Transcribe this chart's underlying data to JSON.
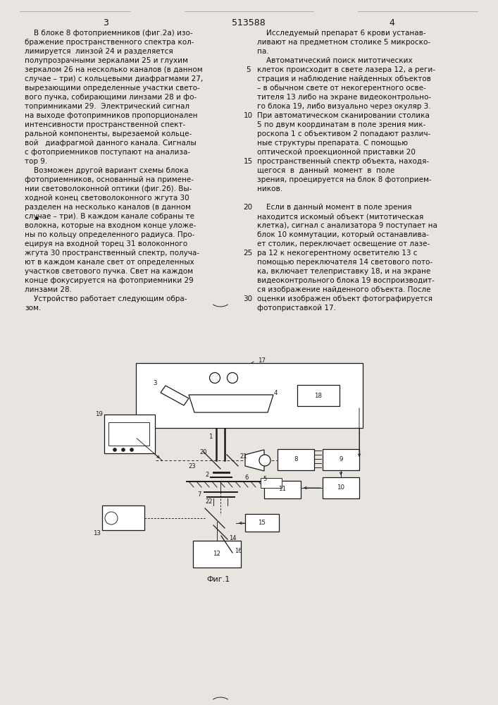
{
  "page_bg": "#e8e5e0",
  "text_color": "#111111",
  "dc": "#1a1a1a",
  "page_num_left": "3",
  "page_num_center": "513588",
  "page_num_right": "4",
  "left_col": [
    "    В блоке 8 фотоприемников (фиг.2а) изо-",
    "бражение пространственного спектра кол-",
    "лимируется  линзой 24 и разделяется",
    "полупрозрачными зеркалами 25 и глухим",
    "зеркалом 26 на несколько каналов (в данном",
    "случае – три) с кольцевыми диафрагмами 27,",
    "вырезающими определенные участки свето-",
    "вого пучка, собирающими линзами 28 и фо-",
    "топримниками 29.  Электрический сигнал",
    "на выходе фотопримников пропорционален",
    "интенсивности пространственной спект-",
    "ральной компоненты, вырезаемой кольце-",
    "вой   диафрагмой данного канала. Сигналы",
    "с фотоприемников поступают на анализа-",
    "тор 9.",
    "    Возможен другой вариант схемы блока",
    "фотоприемников, основанный на примене-",
    "нии световолоконной оптики (фиг.2б). Вы-",
    "ходной конец световолоконного жгута 30",
    "разделен на несколько каналов (в данном",
    "случае – три). В каждом канале собраны те",
    "волокна, которые на входном конце уложе-",
    "ны по кольцу определенного радиуса. Про-",
    "ецируя на входной торец 31 волоконного",
    "жгута 30 пространственный спектр, получа-",
    "ют в каждом канале свет от определенных",
    "участков светового пучка. Свет на каждом",
    "конце фокусируется на фотоприемники 29",
    "линзами 28.",
    "    Устройство работает следующим обра-",
    "зом."
  ],
  "right_col": [
    "    Исследуемый препарат 6 крови устанав-",
    "ливают на предметном столике 5 микроско-",
    "па.",
    "    Автоматический поиск митотических",
    "клеток происходит в свете лазера 12, а реги-",
    "страция и наблюдение найденных объектов",
    "– в обычном свете от некогерентного осве-",
    "тителя 13 либо на экране видеоконтрольно-",
    "го блока 19, либо визуально через окуляр 3.",
    "При автоматическом сканировании столика",
    "5 по двум координатам в поле зрения мик-",
    "роскопа 1 с объективом 2 попадают различ-",
    "ные структуры препарата. С помощью",
    "оптической проекционной приставки 20",
    "пространственный спектр объекта, находя-",
    "щегося  в  данный  момент  в  поле",
    "зрения, проецируется на блок 8 фотоприем-",
    "ников.",
    "",
    "    Если в данный момент в поле зрения",
    "находится искомый объект (митотическая",
    "клетка), сигнал с анализатора 9 поступает на",
    "блок 10 коммутации, который останавлива-",
    "ет столик, переключает освещение от лазе-",
    "ра 12 к некогерентному осветителю 13 с",
    "помощью переключателя 14 светового пото-",
    "ка, включает телеприставку 18, и на экране",
    "видеоконтрольного блока 19 воспроизводит-",
    "ся изображение найденного объекта. После",
    "оценки изображен объект фотографируется",
    "фотоприставкой 17."
  ],
  "line_numbers": [
    "5",
    "10",
    "15",
    "20",
    "25",
    "30"
  ],
  "line_rows": [
    4,
    9,
    14,
    19,
    24,
    29
  ],
  "figure_caption": "Фиг.1"
}
